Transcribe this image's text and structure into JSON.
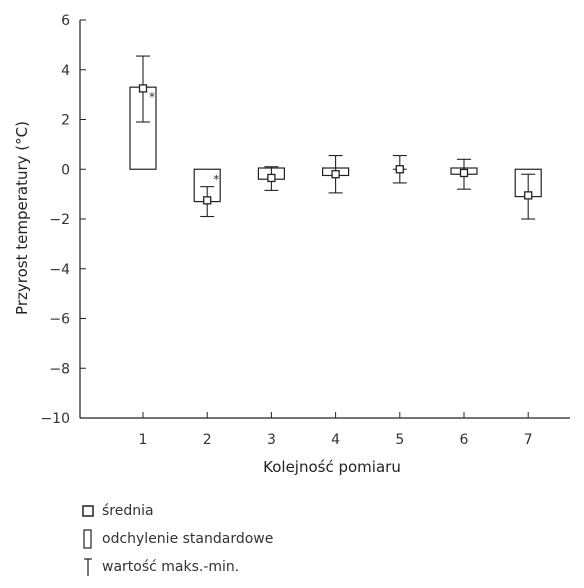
{
  "chart_data": {
    "type": "box",
    "xlabel": "Kolejność pomiaru",
    "ylabel": "Przyrost temperatury (°C)",
    "ylim": [
      -10,
      6
    ],
    "yticks": [
      6,
      4,
      2,
      0,
      -2,
      -4,
      -6,
      -8,
      -10
    ],
    "ytick_labels": [
      "6",
      "4",
      "2",
      "0",
      "−2",
      "−4",
      "−6",
      "−8",
      "−10"
    ],
    "categories": [
      "1",
      "2",
      "3",
      "4",
      "5",
      "6",
      "7"
    ],
    "points": [
      {
        "x": "1",
        "mean": 3.25,
        "sd_low": 0,
        "sd_high": 3.3,
        "min": 1.9,
        "max": 4.55,
        "marker": "*"
      },
      {
        "x": "2",
        "mean": -1.25,
        "sd_low": -1.3,
        "sd_high": 0,
        "min": -1.9,
        "max": -0.7,
        "marker": "*"
      },
      {
        "x": "3",
        "mean": -0.35,
        "sd_low": -0.4,
        "sd_high": 0.05,
        "min": -0.85,
        "max": 0.1,
        "marker": ""
      },
      {
        "x": "4",
        "mean": -0.2,
        "sd_low": -0.25,
        "sd_high": 0.05,
        "min": -0.95,
        "max": 0.55,
        "marker": ""
      },
      {
        "x": "5",
        "mean": 0,
        "sd_low": 0,
        "sd_high": 0,
        "min": -0.55,
        "max": 0.55,
        "marker": ""
      },
      {
        "x": "6",
        "mean": -0.15,
        "sd_low": -0.2,
        "sd_high": 0.05,
        "min": -0.8,
        "max": 0.4,
        "marker": ""
      },
      {
        "x": "7",
        "mean": -1.05,
        "sd_low": -1.1,
        "sd_high": 0,
        "min": -2.0,
        "max": -0.2,
        "marker": ""
      }
    ],
    "grid": false,
    "legend_position": "bottom"
  },
  "legend": {
    "items": [
      {
        "symbol": "square",
        "label": "średnia"
      },
      {
        "symbol": "rect",
        "label": "odchylenie standardowe"
      },
      {
        "symbol": "whisker",
        "label": "wartość maks.-min."
      }
    ]
  }
}
